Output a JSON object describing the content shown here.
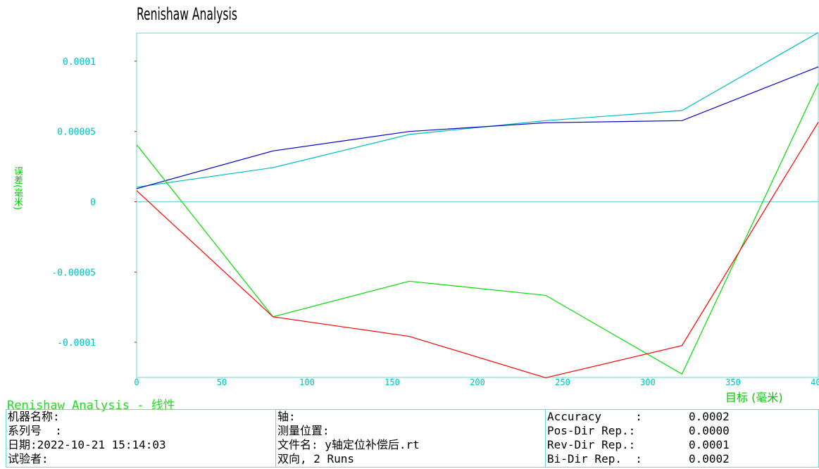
{
  "chart_data": {
    "type": "line",
    "title": "Renishaw Analysis",
    "xlabel": "目标 (毫米)",
    "ylabel": "误差(毫米)",
    "xlim": [
      0,
      400
    ],
    "ylim": [
      -0.000125,
      0.00012
    ],
    "x_ticks": [
      {
        "v": 0,
        "label": "0"
      },
      {
        "v": 50,
        "label": "50"
      },
      {
        "v": 100,
        "label": "100"
      },
      {
        "v": 150,
        "label": "150"
      },
      {
        "v": 200,
        "label": "200"
      },
      {
        "v": 250,
        "label": "250"
      },
      {
        "v": 300,
        "label": "300"
      },
      {
        "v": 350,
        "label": "350"
      },
      {
        "v": 400,
        "label": "400"
      }
    ],
    "y_ticks": [
      {
        "v": 0.0001,
        "label": "0.0001"
      },
      {
        "v": 5e-05,
        "label": "0.00005"
      },
      {
        "v": 0,
        "label": "0"
      },
      {
        "v": -5e-05,
        "label": "-0.00005"
      },
      {
        "v": -0.0001,
        "label": "-0.0001"
      }
    ],
    "zero_line": true,
    "grid": false,
    "series": [
      {
        "color": "#00bfbf",
        "x": [
          0,
          80,
          160,
          240,
          320,
          400
        ],
        "y": [
          1.04e-05,
          2.43e-05,
          4.79e-05,
          5.77e-05,
          6.49e-05,
          0.0001204
        ]
      },
      {
        "color": "#0000cc",
        "x": [
          0,
          80,
          160,
          240,
          320,
          400
        ],
        "y": [
          9.3e-06,
          3.62e-05,
          5e-05,
          5.62e-05,
          5.77e-05,
          9.6e-05
        ]
      },
      {
        "color": "#00dd00",
        "x": [
          0,
          80,
          160,
          240,
          320,
          400
        ],
        "y": [
          4.06e-05,
          -8.18e-05,
          -5.65e-05,
          -6.66e-05,
          -0.0001226,
          8.44e-05
        ]
      },
      {
        "color": "#ff0000",
        "x": [
          0,
          80,
          160,
          240,
          320,
          400
        ],
        "y": [
          7.9e-06,
          -8.18e-05,
          -9.58e-05,
          -0.0001252,
          -0.0001023,
          5.66e-05
        ]
      }
    ]
  },
  "colors": {
    "axis": "#6fd6d6",
    "tick_label": "#00bfbf",
    "title_green": "#22dd22"
  },
  "report": {
    "subtitle": "Renishaw Analysis - 线性",
    "col1": [
      "机器名称:",
      "系列号  :",
      "日期:2022-10-21 15:14:03",
      "试验者:"
    ],
    "col2": [
      "轴:",
      "测量位置:",
      "文件名: y轴定位补偿后.rt",
      "双向, 2 Runs"
    ],
    "stats": [
      {
        "label": "Accuracy     :",
        "value": "0.0002"
      },
      {
        "label": "Pos-Dir Rep.:",
        "value": "0.0000"
      },
      {
        "label": "Rev-Dir Rep.:",
        "value": "0.0001"
      },
      {
        "label": "Bi-Dir Rep.  :",
        "value": "0.0002"
      }
    ]
  }
}
